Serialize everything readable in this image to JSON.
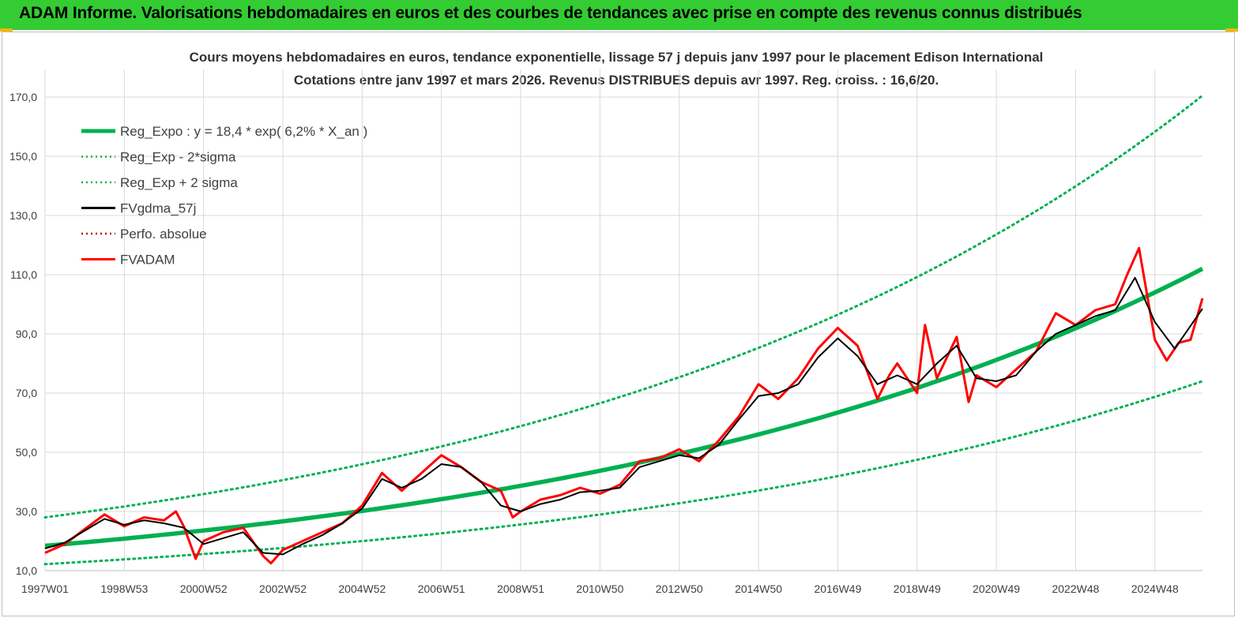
{
  "banner": {
    "title": "ADAM Informe. Valorisations hebdomadaires en euros et des courbes de tendances avec prise en compte des revenus connus distribués"
  },
  "colors": {
    "banner": "#33cc33",
    "regression": "#00b050",
    "fvgdma": "#000000",
    "fvadam": "#ff0000",
    "grid": "#d9d9d9"
  },
  "chart_data": {
    "type": "line",
    "title_line1": "Cours moyens hebdomadaires en euros, tendance exponentielle, lissage 57 j depuis janv 1997 pour le placement Edison International",
    "title_line2": "Cotations entre janv 1997 et mars 2026. Revenus DISTRIBUES depuis avr 1997. Reg. croiss. : 16,6/20.",
    "ylim": [
      10,
      170
    ],
    "y_ticks": [
      "10,0",
      "30,0",
      "50,0",
      "70,0",
      "90,0",
      "110,0",
      "130,0",
      "150,0",
      "170,0"
    ],
    "x_ticks": [
      "1997W01",
      "1998W53",
      "2000W52",
      "2002W52",
      "2004W52",
      "2006W51",
      "2008W51",
      "2010W50",
      "2012W50",
      "2014W50",
      "2016W49",
      "2018W49",
      "2020W49",
      "2022W48",
      "2024W48"
    ],
    "x_tick_years": [
      1997.0,
      1999.0,
      2001.0,
      2003.0,
      2005.0,
      2007.0,
      2009.0,
      2011.0,
      2013.0,
      2015.0,
      2017.0,
      2019.0,
      2021.0,
      2023.0,
      2025.0
    ],
    "xlim": [
      1997.0,
      2026.2
    ],
    "legend_position": "top-left",
    "legend": [
      {
        "label": "Reg_Expo : y = 18,4 * exp( 6,2% *  X_an )",
        "style": "solid-thick",
        "color": "#00b050"
      },
      {
        "label": "Reg_Exp - 2*sigma",
        "style": "dotted",
        "color": "#00b050"
      },
      {
        "label": "Reg_Exp + 2 sigma",
        "style": "dotted",
        "color": "#00b050"
      },
      {
        "label": "FVgdma_57j",
        "style": "solid",
        "color": "#000000"
      },
      {
        "label": "Perfo. absolue",
        "style": "dotted",
        "color": "#c00000"
      },
      {
        "label": "FVADAM",
        "style": "solid",
        "color": "#ff0000"
      }
    ],
    "series": [
      {
        "name": "Reg_Expo : y = 18,4 * exp( 6,2% *  X_an )",
        "x": [
          1997.0,
          2000.0,
          2003.0,
          2006.0,
          2009.0,
          2012.0,
          2015.0,
          2018.0,
          2021.0,
          2024.0,
          2026.2
        ],
        "values": [
          18.4,
          22.2,
          26.7,
          32.1,
          38.7,
          46.6,
          56.1,
          67.5,
          81.3,
          97.9,
          112.0
        ]
      },
      {
        "name": "Reg_Exp - 2*sigma",
        "x": [
          1997.0,
          2000.0,
          2003.0,
          2006.0,
          2009.0,
          2012.0,
          2015.0,
          2018.0,
          2021.0,
          2024.0,
          2026.2
        ],
        "values": [
          12.2,
          14.6,
          17.6,
          21.2,
          25.6,
          30.8,
          37.1,
          44.6,
          53.7,
          64.7,
          74.0
        ]
      },
      {
        "name": "Reg_Exp + 2 sigma",
        "x": [
          1997.0,
          2000.0,
          2003.0,
          2006.0,
          2009.0,
          2012.0,
          2015.0,
          2018.0,
          2021.0,
          2024.0,
          2026.2
        ],
        "values": [
          28.0,
          33.7,
          40.6,
          48.9,
          58.9,
          70.9,
          85.4,
          102.8,
          123.8,
          149.0,
          170.5
        ]
      },
      {
        "name": "FVgdma_57j",
        "x": [
          1997.0,
          1997.5,
          1998.0,
          1998.5,
          1999.0,
          1999.5,
          2000.0,
          2000.5,
          2001.0,
          2001.5,
          2002.0,
          2002.5,
          2003.0,
          2003.5,
          2004.0,
          2004.5,
          2005.0,
          2005.5,
          2006.0,
          2006.5,
          2007.0,
          2007.5,
          2008.0,
          2008.5,
          2009.0,
          2009.5,
          2010.0,
          2010.5,
          2011.0,
          2011.5,
          2012.0,
          2012.5,
          2013.0,
          2013.5,
          2014.0,
          2014.5,
          2015.0,
          2015.5,
          2016.0,
          2016.5,
          2017.0,
          2017.5,
          2018.0,
          2018.5,
          2019.0,
          2019.5,
          2020.0,
          2020.5,
          2021.0,
          2021.5,
          2022.0,
          2022.5,
          2023.0,
          2023.5,
          2024.0,
          2024.5,
          2025.0,
          2025.5,
          2026.2
        ],
        "values": [
          17.5,
          19.5,
          23.5,
          27.5,
          25.5,
          27.0,
          26.0,
          24.5,
          19.0,
          21.0,
          23.0,
          16.0,
          15.5,
          19.0,
          22.0,
          26.0,
          31.0,
          41.0,
          38.0,
          41.0,
          46.0,
          45.0,
          40.0,
          32.0,
          30.0,
          32.5,
          34.0,
          36.5,
          37.0,
          38.0,
          45.0,
          47.0,
          49.0,
          48.0,
          52.5,
          61.0,
          69.0,
          70.0,
          73.0,
          82.0,
          88.5,
          82.5,
          73.0,
          76.0,
          73.0,
          80.0,
          86.0,
          75.0,
          74.0,
          76.0,
          84.0,
          90.0,
          93.0,
          96.0,
          98.0,
          109.0,
          94.0,
          85.0,
          98.5
        ]
      },
      {
        "name": "FVADAM",
        "x": [
          1997.0,
          1997.5,
          1998.0,
          1998.5,
          1999.0,
          1999.5,
          2000.0,
          2000.3,
          2000.5,
          2000.8,
          2001.0,
          2001.5,
          2002.0,
          2002.5,
          2002.7,
          2003.0,
          2003.5,
          2004.0,
          2004.5,
          2005.0,
          2005.5,
          2006.0,
          2006.5,
          2007.0,
          2007.5,
          2008.0,
          2008.5,
          2008.8,
          2009.0,
          2009.5,
          2010.0,
          2010.5,
          2011.0,
          2011.5,
          2012.0,
          2012.5,
          2013.0,
          2013.5,
          2014.0,
          2014.5,
          2015.0,
          2015.5,
          2016.0,
          2016.5,
          2017.0,
          2017.5,
          2018.0,
          2018.3,
          2018.5,
          2019.0,
          2019.2,
          2019.5,
          2020.0,
          2020.3,
          2020.5,
          2021.0,
          2021.5,
          2022.0,
          2022.5,
          2023.0,
          2023.5,
          2024.0,
          2024.3,
          2024.6,
          2025.0,
          2025.3,
          2025.6,
          2025.9,
          2026.2
        ],
        "values": [
          16.0,
          19.0,
          24.0,
          29.0,
          25.0,
          28.0,
          27.0,
          30.0,
          25.0,
          14.0,
          20.0,
          23.0,
          24.5,
          15.0,
          12.5,
          17.0,
          20.0,
          23.0,
          26.0,
          32.0,
          43.0,
          37.0,
          43.0,
          49.0,
          45.0,
          40.0,
          37.0,
          28.0,
          30.0,
          34.0,
          35.5,
          38.0,
          36.0,
          39.0,
          47.0,
          48.0,
          51.0,
          47.0,
          54.0,
          62.0,
          73.0,
          68.0,
          75.0,
          85.0,
          92.0,
          86.0,
          68.0,
          76.0,
          80.0,
          70.0,
          93.0,
          75.0,
          89.0,
          67.0,
          76.0,
          72.0,
          78.0,
          84.0,
          97.0,
          93.0,
          98.0,
          100.0,
          110.0,
          119.0,
          88.0,
          81.0,
          87.0,
          88.0,
          102.0
        ]
      }
    ]
  }
}
